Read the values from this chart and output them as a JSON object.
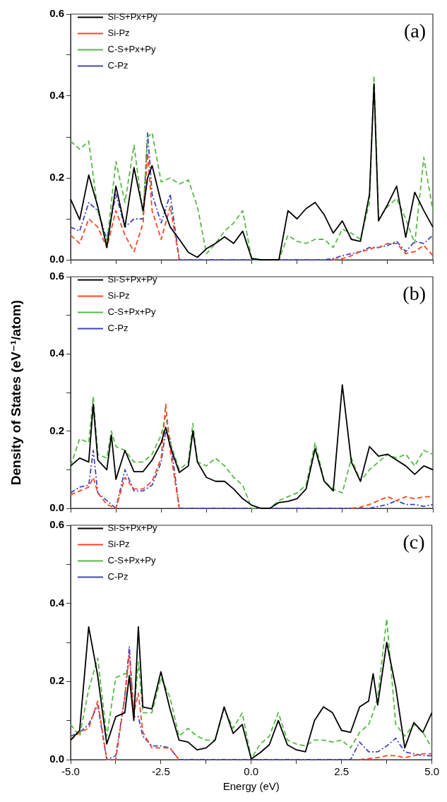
{
  "chart_data": [
    {
      "type": "line",
      "annotations": [
        "(a)"
      ],
      "legend": "top left",
      "grid": false,
      "tick_labels": "y",
      "xlim": [
        -5,
        5
      ],
      "ylim": [
        0,
        0.6
      ],
      "xticks": [
        {
          "value": -5,
          "label": null
        },
        {
          "value": -3.75,
          "label": null
        },
        {
          "value": -2.5,
          "label": null
        },
        {
          "value": -1.25,
          "label": null
        },
        {
          "value": 0,
          "label": null
        },
        {
          "value": 1.25,
          "label": null
        },
        {
          "value": 2.5,
          "label": null
        },
        {
          "value": 3.75,
          "label": null
        },
        {
          "value": 5,
          "label": null
        }
      ],
      "yticks": [
        {
          "value": 0,
          "label": "0.0"
        },
        {
          "value": 0.1,
          "label": null
        },
        {
          "value": 0.2,
          "label": "0.2"
        },
        {
          "value": 0.3,
          "label": null
        },
        {
          "value": 0.4,
          "label": "0.4"
        },
        {
          "value": 0.5,
          "label": null
        },
        {
          "value": 0.6,
          "label": "0.6"
        }
      ],
      "x": [
        -5,
        -4.75,
        -4.5,
        -4.25,
        -4,
        -3.75,
        -3.5,
        -3.25,
        -3,
        -2.875,
        -2.75,
        -2.5,
        -2.25,
        -2,
        -1.75,
        -1.5,
        -1.25,
        -1,
        -0.75,
        -0.5,
        -0.25,
        0,
        0.25,
        0.5,
        0.75,
        1,
        1.25,
        1.5,
        1.75,
        2,
        2.25,
        2.5,
        2.75,
        3,
        3.25,
        3.375,
        3.5,
        3.75,
        4,
        4.25,
        4.5,
        4.75,
        5
      ],
      "series": [
        {
          "name": "Si-S+Px+Py",
          "color": "#000000",
          "line_style": "solid",
          "values": [
            0.148,
            0.098,
            0.207,
            0.13,
            0.03,
            0.18,
            0.08,
            0.225,
            0.12,
            0.2,
            0.23,
            0.14,
            0.08,
            0.05,
            0.018,
            0.006,
            0.027,
            0.04,
            0.056,
            0.04,
            0.07,
            0.003,
            0,
            0,
            0,
            0.12,
            0.1,
            0.125,
            0.14,
            0.11,
            0.065,
            0.095,
            0.05,
            0.045,
            0.16,
            0.43,
            0.095,
            0.135,
            0.18,
            0.055,
            0.165,
            0.12,
            0.08
          ]
        },
        {
          "name": "Si-Pz",
          "color": "#ff4422",
          "line_style": "dashed",
          "values": [
            0.06,
            0.04,
            0.1,
            0.08,
            0.03,
            0.12,
            0.06,
            0.02,
            0.09,
            0.26,
            0.12,
            0.05,
            0.13,
            0,
            null,
            null,
            null,
            null,
            null,
            null,
            null,
            null,
            null,
            null,
            null,
            null,
            null,
            null,
            null,
            null,
            0,
            0.003,
            0.01,
            0.02,
            0.025,
            0.03,
            0.03,
            0.04,
            0.04,
            0.015,
            0.02,
            0.035,
            0.01
          ]
        },
        {
          "name": "C-S+Px+Py",
          "color": "#55bb44",
          "line_style": "dashed",
          "values": [
            0.29,
            0.27,
            0.29,
            0.12,
            0.04,
            0.24,
            0.14,
            0.28,
            0.11,
            0.3,
            0.31,
            0.19,
            0.2,
            0.185,
            0.195,
            0.13,
            0.015,
            0.04,
            0.07,
            0.09,
            0.12,
            0,
            0,
            0,
            0,
            0.06,
            0.045,
            0.04,
            0.05,
            0.05,
            0.03,
            0.075,
            0.065,
            0.05,
            0.14,
            0.45,
            0.1,
            0.13,
            0.15,
            0.1,
            0.04,
            0.25,
            0.12
          ]
        },
        {
          "name": "C-Pz",
          "color": "#4444bb",
          "line_style": "dotted",
          "values": [
            0.08,
            0.07,
            0.14,
            0.12,
            0.05,
            0.16,
            0.08,
            0.1,
            0.1,
            0.31,
            0.16,
            0.09,
            0.16,
            0,
            0,
            0,
            0,
            0,
            0,
            0,
            0,
            0,
            0,
            0,
            0,
            0,
            0,
            0,
            0,
            0,
            0.003,
            0.01,
            0.015,
            0.02,
            0.03,
            0.03,
            0.03,
            0.035,
            0.045,
            0.02,
            0.045,
            0.04,
            0.06
          ]
        }
      ]
    },
    {
      "type": "line",
      "annotations": [
        "(b)"
      ],
      "ylabel": "Density of States (eV⁻¹/atom)",
      "legend": "top left",
      "grid": false,
      "tick_labels": "y",
      "xlim": [
        -5,
        5
      ],
      "ylim": [
        0,
        0.6
      ],
      "xticks": [
        {
          "value": -5,
          "label": null
        },
        {
          "value": -3.75,
          "label": null
        },
        {
          "value": -2.5,
          "label": null
        },
        {
          "value": -1.25,
          "label": null
        },
        {
          "value": 0,
          "label": null
        },
        {
          "value": 1.25,
          "label": null
        },
        {
          "value": 2.5,
          "label": null
        },
        {
          "value": 3.75,
          "label": null
        },
        {
          "value": 5,
          "label": null
        }
      ],
      "yticks": [
        {
          "value": 0,
          "label": "0.0"
        },
        {
          "value": 0.1,
          "label": null
        },
        {
          "value": 0.2,
          "label": "0.2"
        },
        {
          "value": 0.3,
          "label": null
        },
        {
          "value": 0.4,
          "label": "0.4"
        },
        {
          "value": 0.5,
          "label": null
        },
        {
          "value": 0.6,
          "label": "0.6"
        }
      ],
      "x": [
        -5,
        -4.75,
        -4.5,
        -4.375,
        -4.25,
        -4,
        -3.875,
        -3.75,
        -3.5,
        -3.25,
        -3,
        -2.75,
        -2.5,
        -2.375,
        -2.25,
        -2,
        -1.75,
        -1.625,
        -1.5,
        -1.25,
        -1,
        -0.75,
        -0.5,
        -0.25,
        0,
        0.25,
        0.5,
        0.75,
        1,
        1.25,
        1.5,
        1.75,
        2,
        2.25,
        2.5,
        2.75,
        3,
        3.25,
        3.5,
        3.75,
        4,
        4.25,
        4.5,
        4.75,
        5
      ],
      "series": [
        {
          "name": "Si-S+Px+Py",
          "color": "#000000",
          "line_style": "solid",
          "values": [
            0.11,
            0.13,
            0.12,
            0.27,
            0.125,
            0.1,
            0.19,
            0.075,
            0.15,
            0.095,
            0.095,
            0.125,
            0.17,
            0.21,
            0.16,
            0.093,
            0.11,
            0.2,
            0.12,
            0.08,
            0.07,
            0.07,
            0.05,
            0.025,
            0.008,
            0,
            0,
            0.015,
            0.018,
            0.025,
            0.05,
            0.155,
            0.07,
            0.045,
            0.32,
            0.12,
            0.07,
            0.16,
            0.135,
            0.14,
            0.125,
            0.11,
            0.088,
            0.11,
            0.1
          ]
        },
        {
          "name": "Si-Pz",
          "color": "#ff4422",
          "line_style": "dashed",
          "values": [
            0.035,
            0.045,
            0.055,
            0.08,
            0.04,
            0.01,
            0.005,
            0,
            0.08,
            0.05,
            0.05,
            0.07,
            0.13,
            0.27,
            0.15,
            0,
            null,
            null,
            null,
            null,
            null,
            null,
            null,
            null,
            null,
            null,
            null,
            null,
            null,
            null,
            null,
            null,
            null,
            null,
            null,
            0,
            0.003,
            0.01,
            0.02,
            0.03,
            0.02,
            0.03,
            0.025,
            0.03,
            0.03
          ]
        },
        {
          "name": "C-S+Px+Py",
          "color": "#55bb44",
          "line_style": "dashed",
          "values": [
            0.11,
            0.18,
            0.17,
            0.29,
            0.14,
            0.13,
            0.2,
            0.16,
            0.15,
            0.12,
            0.12,
            0.14,
            0.19,
            0.24,
            0.17,
            0.1,
            0.12,
            0.22,
            0.12,
            0.11,
            0.13,
            0.11,
            0.08,
            0.06,
            0,
            0,
            0,
            0.02,
            0.03,
            0.04,
            0.06,
            0.17,
            0.07,
            0.05,
            0.04,
            0.13,
            0.07,
            0.1,
            0.12,
            0.14,
            0.13,
            0.14,
            0.11,
            0.15,
            0.14
          ]
        },
        {
          "name": "C-Pz",
          "color": "#4444bb",
          "line_style": "dotted",
          "values": [
            0.04,
            0.055,
            0.06,
            0.15,
            0.04,
            0.02,
            0.01,
            0,
            0.1,
            0.045,
            0.045,
            0.06,
            0.12,
            0.2,
            0.18,
            0,
            0,
            0,
            0,
            0,
            0,
            0,
            0,
            0,
            0,
            0,
            0,
            0,
            0,
            0,
            0,
            0,
            0,
            0,
            0,
            0,
            0,
            0,
            0.005,
            0.01,
            0.02,
            0.01,
            0.01,
            0.005,
            0.01
          ]
        }
      ]
    },
    {
      "type": "line",
      "annotations": [
        "(c)"
      ],
      "xlabel": "Energy (eV)",
      "legend": "top left",
      "grid": false,
      "xlim": [
        -5,
        5
      ],
      "ylim": [
        0,
        0.6
      ],
      "xticks": [
        {
          "value": -5,
          "label": "-5.0"
        },
        {
          "value": -3.75,
          "label": null
        },
        {
          "value": -2.5,
          "label": "-2.5"
        },
        {
          "value": -1.25,
          "label": null
        },
        {
          "value": 0,
          "label": "0.0"
        },
        {
          "value": 1.25,
          "label": null
        },
        {
          "value": 2.5,
          "label": "2.5"
        },
        {
          "value": 3.75,
          "label": null
        },
        {
          "value": 5,
          "label": "5.0"
        }
      ],
      "yticks": [
        {
          "value": 0,
          "label": "0.0"
        },
        {
          "value": 0.1,
          "label": null
        },
        {
          "value": 0.2,
          "label": "0.2"
        },
        {
          "value": 0.3,
          "label": null
        },
        {
          "value": 0.4,
          "label": "0.4"
        },
        {
          "value": 0.5,
          "label": null
        },
        {
          "value": 0.6,
          "label": "0.6"
        }
      ],
      "x": [
        -5,
        -4.75,
        -4.5,
        -4.25,
        -4,
        -3.75,
        -3.5,
        -3.375,
        -3.25,
        -3.125,
        -3,
        -2.75,
        -2.5,
        -2.25,
        -2,
        -1.75,
        -1.5,
        -1.25,
        -1,
        -0.75,
        -0.5,
        -0.25,
        0,
        0.25,
        0.5,
        0.75,
        1,
        1.25,
        1.5,
        1.75,
        2,
        2.25,
        2.5,
        2.75,
        3,
        3.25,
        3.375,
        3.5,
        3.75,
        4,
        4.25,
        4.5,
        4.75,
        5
      ],
      "series": [
        {
          "name": "Si-S+Px+Py",
          "color": "#000000",
          "line_style": "solid",
          "values": [
            0.05,
            0.075,
            0.34,
            0.215,
            0.04,
            0.11,
            0.12,
            0.215,
            0.1,
            0.34,
            0.135,
            0.13,
            0.225,
            0.13,
            0.05,
            0.045,
            0.025,
            0.03,
            0.05,
            0.135,
            0.067,
            0.09,
            0.002,
            0.018,
            0.038,
            0.1,
            0.038,
            0.025,
            0.02,
            0.1,
            0.135,
            0.12,
            0.075,
            0.07,
            0.135,
            0.15,
            0.22,
            0.14,
            0.3,
            0.185,
            0.03,
            0.095,
            0.07,
            0.12
          ]
        },
        {
          "name": "Si-Pz",
          "color": "#ff4422",
          "line_style": "dashed",
          "values": [
            0.05,
            0.07,
            0.08,
            0.15,
            0,
            0,
            0.16,
            0.27,
            0.12,
            0.17,
            0.07,
            0.03,
            0.03,
            0.03,
            0,
            null,
            null,
            null,
            null,
            null,
            null,
            null,
            null,
            null,
            null,
            null,
            null,
            null,
            null,
            null,
            null,
            null,
            null,
            null,
            0,
            0.003,
            0.004,
            0.005,
            0.01,
            0.01,
            0.005,
            0.01,
            0.015,
            0.015
          ]
        },
        {
          "name": "C-S+Px+Py",
          "color": "#55bb44",
          "line_style": "dashed",
          "values": [
            0.09,
            0.06,
            0.18,
            0.26,
            0.06,
            0.21,
            0.22,
            0.22,
            0.12,
            0.25,
            0.12,
            0.12,
            0.21,
            0.16,
            0.06,
            0.08,
            0.06,
            0.05,
            0.05,
            0.13,
            0.08,
            0.12,
            0.003,
            0.04,
            0.06,
            0.12,
            0.05,
            0.04,
            0.035,
            0.05,
            0.05,
            0.045,
            0.05,
            0.03,
            0.07,
            0.09,
            0.12,
            0.16,
            0.36,
            0.09,
            0.06,
            0.09,
            0.07,
            0.03
          ]
        },
        {
          "name": "C-Pz",
          "color": "#4444bb",
          "line_style": "dotted",
          "values": [
            0.06,
            0.07,
            0.09,
            0.14,
            0,
            0.01,
            0.16,
            0.29,
            0.11,
            0.11,
            0.06,
            0.035,
            0.035,
            0.03,
            0,
            0,
            0,
            0,
            0,
            0,
            0,
            0,
            0,
            0,
            0,
            0,
            0,
            0,
            0,
            0,
            0,
            0,
            0,
            0,
            0.045,
            0.02,
            0.02,
            0.02,
            0.035,
            0.055,
            0.02,
            0.015,
            0.01,
            0.01
          ]
        }
      ]
    }
  ]
}
